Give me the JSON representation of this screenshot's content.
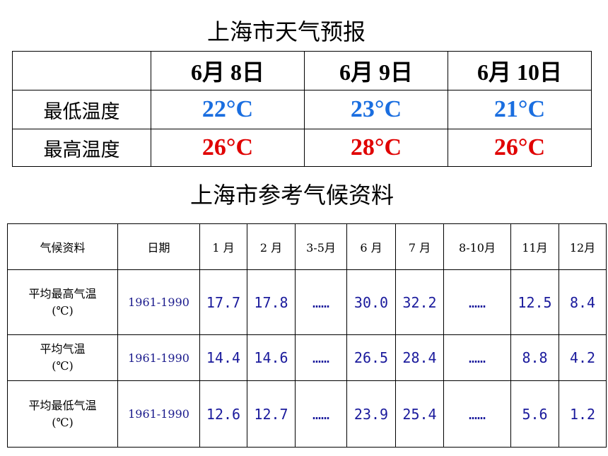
{
  "forecast": {
    "title": "上海市天气预报",
    "columns": [
      "6月 8日",
      "6月 9日",
      "6月 10日"
    ],
    "rows": [
      {
        "label": "最低温度",
        "values": [
          "22°C",
          "23°C",
          "21°C"
        ]
      },
      {
        "label": "最高温度",
        "values": [
          "26°C",
          "28°C",
          "26°C"
        ]
      }
    ]
  },
  "climate": {
    "title": "上海市参考气候资料",
    "header": [
      "气候资料",
      "日期",
      "1 月",
      "2 月",
      "3-5月",
      "6 月",
      "7 月",
      "8-10月",
      "11月",
      "12月"
    ],
    "rows": [
      {
        "label": "平均最高气温",
        "unit": "(℃)",
        "period": "1961-1990",
        "values": [
          "17.7",
          "17.8",
          "……",
          "30.0",
          "32.2",
          "……",
          "12.5",
          "8.4"
        ]
      },
      {
        "label": "平均气温",
        "unit": "(℃)",
        "period": "1961-1990",
        "values": [
          "14.4",
          "14.6",
          "……",
          "26.5",
          "28.4",
          "……",
          "8.8",
          "4.2"
        ]
      },
      {
        "label": "平均最低气温",
        "unit": "(℃)",
        "period": "1961-1990",
        "values": [
          "12.6",
          "12.7",
          "……",
          "23.9",
          "25.4",
          "……",
          "5.6",
          "1.2"
        ]
      }
    ]
  }
}
